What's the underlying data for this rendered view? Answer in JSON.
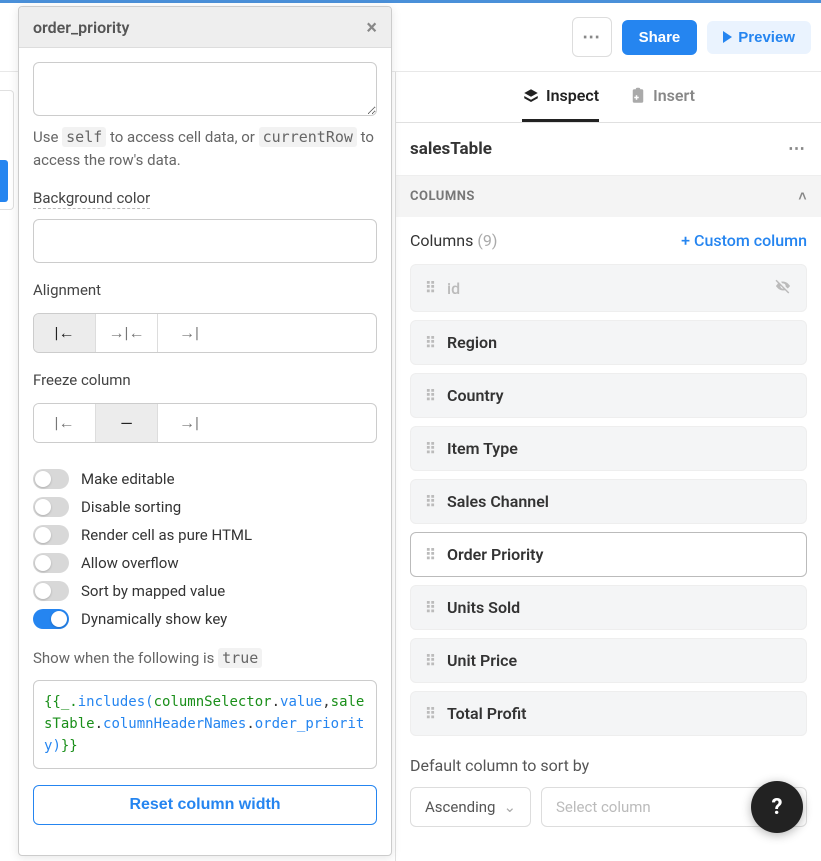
{
  "topbar": {
    "more_label": "⋯",
    "share_label": "Share",
    "preview_label": "Preview"
  },
  "left_panel": {
    "title": "order_priority",
    "textarea_value": "",
    "helper_pre": "Use ",
    "helper_self": "self",
    "helper_mid": " to access cell data, or ",
    "helper_currentRow": "currentRow",
    "helper_post": " to access the row's data.",
    "bg_label": "Background color",
    "bg_value": "",
    "alignment_label": "Alignment",
    "freeze_label": "Freeze column",
    "toggles": {
      "make_editable": {
        "label": "Make editable",
        "on": false
      },
      "disable_sorting": {
        "label": "Disable sorting",
        "on": false
      },
      "render_html": {
        "label": "Render cell as pure HTML",
        "on": false
      },
      "allow_overflow": {
        "label": "Allow overflow",
        "on": false
      },
      "sort_mapped": {
        "label": "Sort by mapped value",
        "on": false
      },
      "dyn_show_key": {
        "label": "Dynamically show key",
        "on": true
      }
    },
    "show_when_pre": "Show when the following is ",
    "show_when_true": "true",
    "code": {
      "open": "{{",
      "prefix": "_.",
      "fn": "includes",
      "lparen": "(",
      "arg1a": "columnSelector",
      "dot1": ".",
      "arg1b": "value",
      "comma": ",",
      "arg2a": "salesTable",
      "dot2": ".",
      "arg2b": "columnHeaderNames",
      "dot3": ".",
      "arg2c": "order_priority",
      "rparen": ")",
      "close": "}}"
    },
    "reset_label": "Reset column width"
  },
  "right_panel": {
    "tabs": {
      "inspect": "Inspect",
      "insert": "Insert"
    },
    "component_name": "salesTable",
    "section_columns": "COLUMNS",
    "columns_label": "Columns",
    "columns_count": "(9)",
    "custom_column": "+ Custom column",
    "columns": [
      {
        "label": "id",
        "muted": true,
        "hidden": true,
        "selected": false
      },
      {
        "label": "Region",
        "muted": false,
        "hidden": false,
        "selected": false
      },
      {
        "label": "Country",
        "muted": false,
        "hidden": false,
        "selected": false
      },
      {
        "label": "Item Type",
        "muted": false,
        "hidden": false,
        "selected": false
      },
      {
        "label": "Sales Channel",
        "muted": false,
        "hidden": false,
        "selected": false
      },
      {
        "label": "Order Priority",
        "muted": false,
        "hidden": false,
        "selected": true
      },
      {
        "label": "Units Sold",
        "muted": false,
        "hidden": false,
        "selected": false
      },
      {
        "label": "Unit Price",
        "muted": false,
        "hidden": false,
        "selected": false
      },
      {
        "label": "Total Profit",
        "muted": false,
        "hidden": false,
        "selected": false
      }
    ],
    "default_sort_label": "Default column to sort by",
    "sort_direction": "Ascending",
    "sort_column_placeholder": "Select column"
  },
  "help": "?",
  "colors": {
    "primary": "#2585f0",
    "muted": "#888888",
    "border": "#dddddd"
  }
}
